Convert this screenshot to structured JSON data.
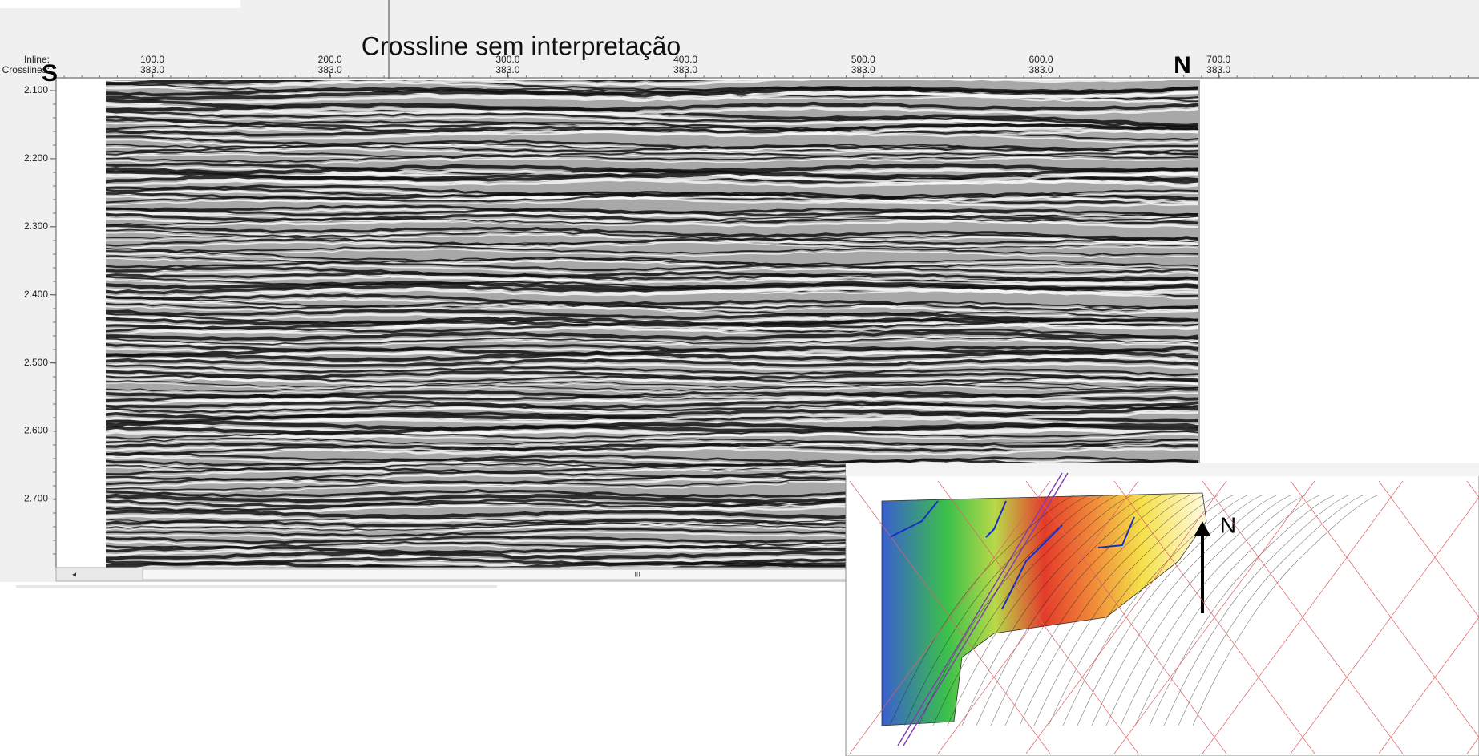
{
  "header": {
    "title": "Crossline sem interpretação",
    "south": "S",
    "north": "N"
  },
  "top_axis": {
    "row_labels": [
      "Inline:",
      "Crosslines:"
    ],
    "ticks": [
      [
        "100.0",
        "383.0"
      ],
      [
        "200.0",
        "383.0"
      ],
      [
        "300.0",
        "383.0"
      ],
      [
        "400.0",
        "383.0"
      ],
      [
        "500.0",
        "383.0"
      ],
      [
        "600.0",
        "383.0"
      ],
      [
        "700.0",
        "383.0"
      ]
    ]
  },
  "left_axis": {
    "ticks": [
      "2.100",
      "2.200",
      "2.300",
      "2.400",
      "2.500",
      "2.600",
      "2.700"
    ]
  },
  "scrollbar": {
    "grip": "III"
  },
  "inset_map": {
    "north": "N"
  }
}
